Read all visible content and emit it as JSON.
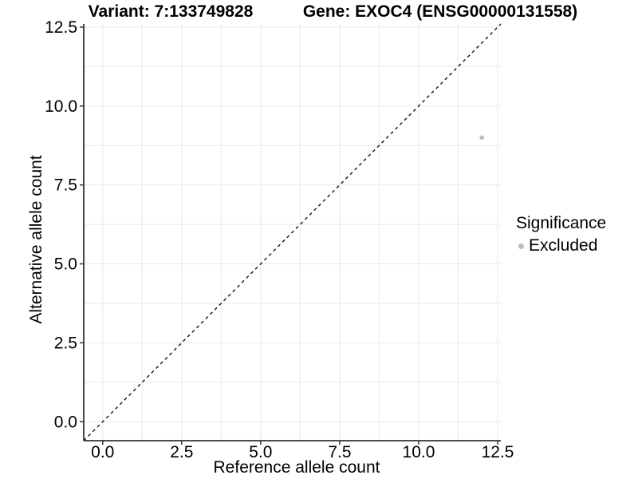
{
  "chart_data": {
    "type": "scatter",
    "title_variant": "Variant: 7:133749828",
    "title_gene": "Gene: EXOC4 (ENSG00000131558)",
    "xlabel": "Reference allele count",
    "ylabel": "Alternative allele count",
    "xlim": [
      -0.6,
      12.6
    ],
    "ylim": [
      -0.6,
      12.6
    ],
    "major_ticks": [
      0,
      2.5,
      5,
      7.5,
      10,
      12.5
    ],
    "tick_labels": [
      "0.0",
      "2.5",
      "5.0",
      "7.5",
      "10.0",
      "12.5"
    ],
    "minor_step": 1.25,
    "grid": true,
    "legend_position": "right",
    "identity_line": {
      "slope": 1,
      "intercept": 0,
      "style": "dashed",
      "color": "#000000"
    },
    "series": [
      {
        "name": "Excluded",
        "color": "#bdbdbd",
        "points": [
          {
            "x": 12,
            "y": 9
          }
        ]
      }
    ],
    "legend": {
      "title": "Significance",
      "items": [
        {
          "label": "Excluded",
          "color": "#bdbdbd"
        }
      ]
    }
  },
  "colors": {
    "grid": "#e9e9e9",
    "axis": "#333333",
    "text": "#000000",
    "background": "#ffffff"
  }
}
